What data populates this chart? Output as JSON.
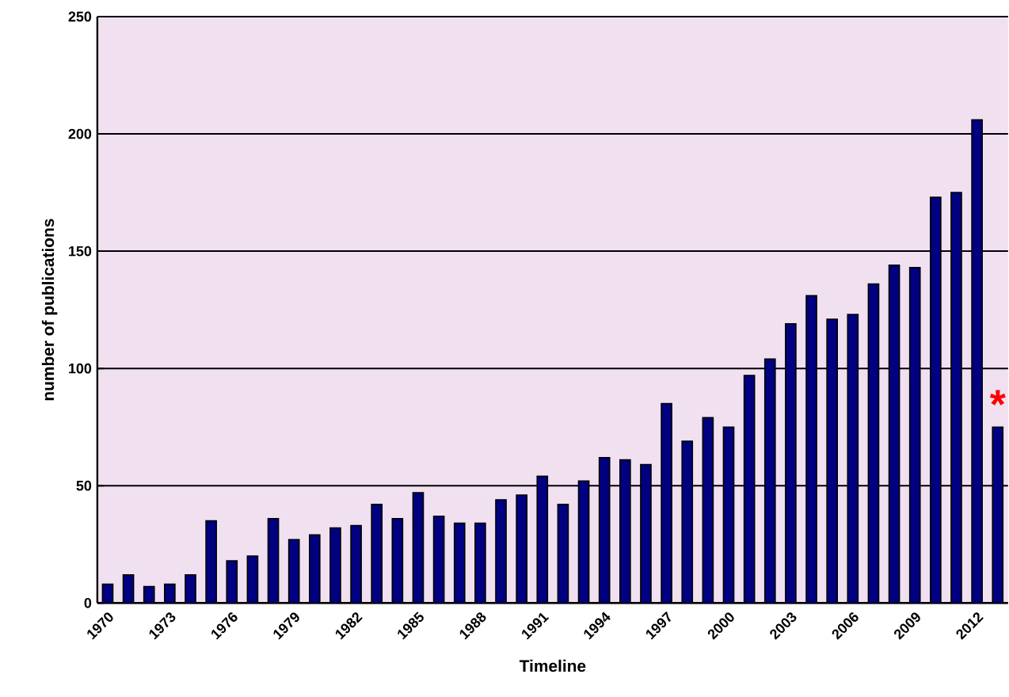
{
  "chart_data": {
    "type": "bar",
    "xlabel": "Timeline",
    "ylabel": "number of publications",
    "categories": [
      "1970",
      null,
      null,
      "1973",
      null,
      null,
      "1976",
      null,
      null,
      "1979",
      null,
      null,
      "1982",
      null,
      null,
      "1985",
      null,
      null,
      "1988",
      null,
      null,
      "1991",
      null,
      null,
      "1994",
      null,
      null,
      "1997",
      null,
      null,
      "2000",
      null,
      null,
      "2003",
      null,
      null,
      "2006",
      null,
      null,
      "2009",
      null,
      null,
      "2012",
      null
    ],
    "values": [
      8,
      12,
      7,
      8,
      12,
      35,
      18,
      20,
      36,
      27,
      29,
      32,
      33,
      42,
      36,
      47,
      37,
      34,
      34,
      44,
      46,
      54,
      42,
      52,
      62,
      61,
      59,
      85,
      69,
      79,
      75,
      97,
      104,
      119,
      131,
      121,
      123,
      136,
      144,
      143,
      173,
      175,
      206,
      75
    ],
    "color": "#000080",
    "ylim": [
      0,
      250
    ],
    "yticks": [
      0,
      50,
      100,
      150,
      200,
      250
    ],
    "grid": "y",
    "annotations": [
      "*"
    ]
  }
}
